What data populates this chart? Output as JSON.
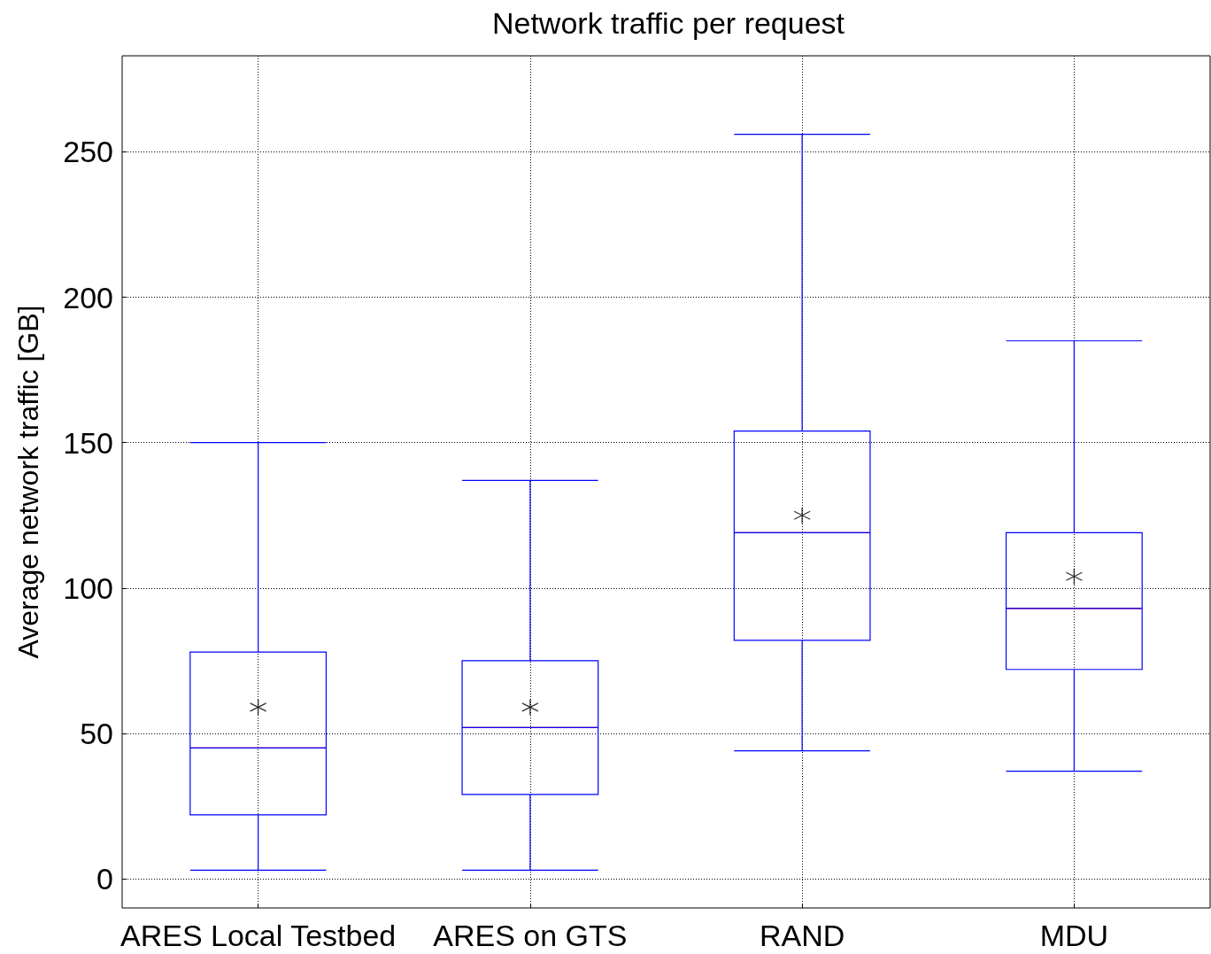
{
  "chart_data": {
    "type": "box",
    "title": "Network traffic per request",
    "ylabel": "Average network traffic [GB]",
    "categories": [
      "ARES Local Testbed",
      "ARES on GTS",
      "RAND",
      "MDU"
    ],
    "color": "#0000ff",
    "marker": "star",
    "grid": true,
    "ylim": [
      -10,
      283
    ],
    "yticks": [
      0,
      50,
      100,
      150,
      200,
      250
    ],
    "boxes": [
      {
        "low": 3,
        "q1": 22,
        "median": 45,
        "q3": 78,
        "high": 150,
        "mean": 59
      },
      {
        "low": 3,
        "q1": 29,
        "median": 52,
        "q3": 75,
        "high": 137,
        "mean": 59
      },
      {
        "low": 44,
        "q1": 82,
        "median": 119,
        "q3": 154,
        "high": 256,
        "mean": 125
      },
      {
        "low": 37,
        "q1": 72,
        "median": 93,
        "q3": 119,
        "high": 185,
        "mean": 104
      }
    ]
  }
}
